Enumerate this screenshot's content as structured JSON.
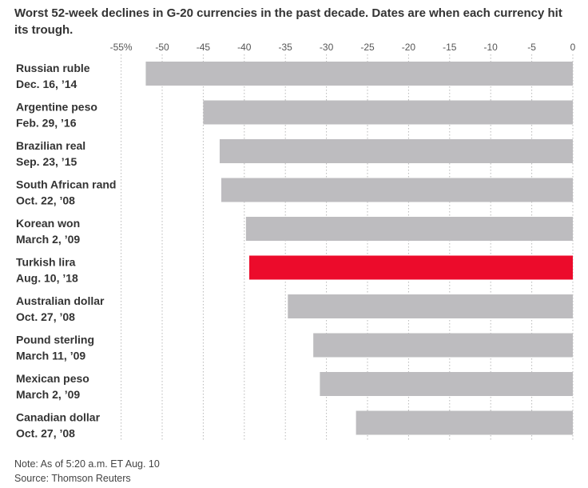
{
  "title": "Worst 52-week declines in G-20 currencies in the past decade. Dates are when each currency hit its trough.",
  "note": "Note: As of 5:20 a.m. ET Aug. 10",
  "source": "Source: Thomson Reuters",
  "colors": {
    "default_bar": "#bdbcbf",
    "highlight_bar": "#ec0b2b",
    "grid": "#b8b8b8",
    "text": "#333333"
  },
  "chart_data": {
    "type": "bar",
    "orientation": "horizontal",
    "title": "Worst 52-week declines in G-20 currencies in the past decade. Dates are when each currency hit its trough.",
    "xlabel": "",
    "ylabel": "",
    "xlim": [
      -55,
      0
    ],
    "ticks": [
      -55,
      -50,
      -45,
      -40,
      -35,
      -30,
      -25,
      -20,
      -15,
      -10,
      -5,
      0
    ],
    "tick_labels": [
      "-55%",
      "-50",
      "-45",
      "-40",
      "-35",
      "-30",
      "-25",
      "-20",
      "-15",
      "-10",
      "-5",
      "0"
    ],
    "grid": true,
    "highlight": "Turkish lira",
    "items": [
      {
        "name": "Russian ruble",
        "date": "Dec. 16, ’14",
        "value": -52
      },
      {
        "name": "Argentine peso",
        "date": "Feb. 29, ’16",
        "value": -45
      },
      {
        "name": "Brazilian real",
        "date": "Sep. 23, ’15",
        "value": -43
      },
      {
        "name": "South African rand",
        "date": "Oct. 22, ’08",
        "value": -42.8
      },
      {
        "name": "Korean won",
        "date": "March 2, ’09",
        "value": -39.8
      },
      {
        "name": "Turkish lira",
        "date": "Aug. 10, ’18",
        "value": -39.4
      },
      {
        "name": "Australian dollar",
        "date": "Oct. 27, ’08",
        "value": -34.7
      },
      {
        "name": "Pound sterling",
        "date": "March 11, ’09",
        "value": -31.6
      },
      {
        "name": "Mexican peso",
        "date": "March 2, ’09",
        "value": -30.8
      },
      {
        "name": "Canadian dollar",
        "date": "Oct. 27, ’08",
        "value": -26.4
      }
    ]
  }
}
